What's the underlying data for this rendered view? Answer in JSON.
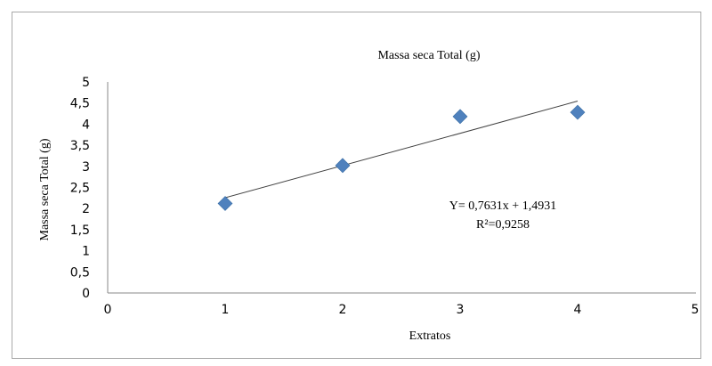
{
  "chart_data": {
    "type": "scatter",
    "title": "Massa seca Total (g)",
    "xlabel": "Extratos",
    "ylabel": "Massa seca Total (g)",
    "xlim": [
      0,
      5
    ],
    "ylim": [
      0,
      5
    ],
    "x_ticks": [
      "0",
      "1",
      "2",
      "3",
      "4",
      "5"
    ],
    "y_ticks": [
      "0",
      "0,5",
      "1",
      "1,5",
      "2",
      "2,5",
      "3",
      "3,5",
      "4",
      "4,5",
      "5"
    ],
    "points": [
      {
        "x": 1,
        "y": 2.12
      },
      {
        "x": 2,
        "y": 3.02
      },
      {
        "x": 3,
        "y": 4.18
      },
      {
        "x": 4,
        "y": 4.28
      }
    ],
    "trendline": {
      "slope": 0.7631,
      "intercept": 1.4931,
      "x_range": [
        1,
        4
      ]
    },
    "annotations": [
      "Y= 0,7631x + 1,4931",
      "R²=0,9258"
    ],
    "grid": false,
    "legend": "none",
    "marker_color": "#4f81bd",
    "trendline_color": "#404040"
  }
}
